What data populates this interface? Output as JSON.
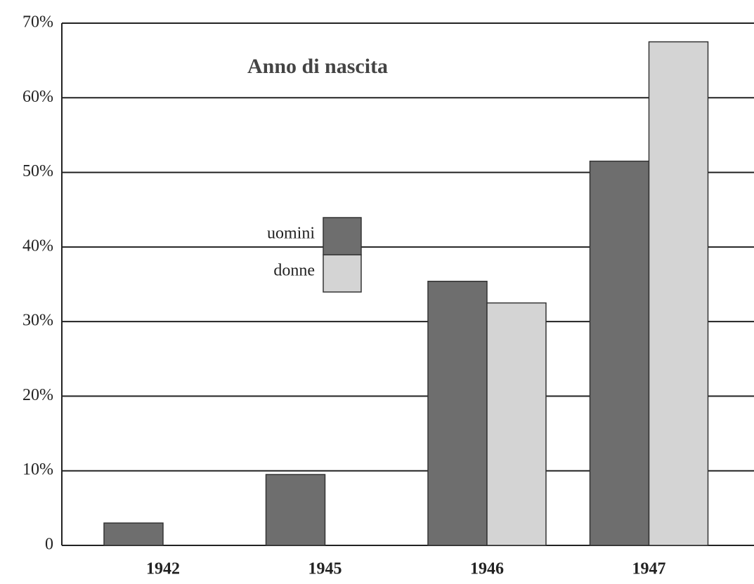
{
  "chart_data": {
    "type": "bar",
    "title": "Anno di nascita",
    "categories": [
      "1942",
      "1945",
      "1946",
      "1947"
    ],
    "series": [
      {
        "name": "uomini",
        "color": "#6e6e6e",
        "values": [
          3,
          9.5,
          35.4,
          51.5
        ]
      },
      {
        "name": "donne",
        "color": "#d4d4d4",
        "values": [
          0,
          0,
          32.5,
          67.5
        ]
      }
    ],
    "ylim": [
      0,
      70
    ],
    "yticks": [
      0,
      {
        "value": 10,
        "label": "10%"
      },
      {
        "value": 20,
        "label": "20%"
      },
      {
        "value": 30,
        "label": "30%"
      },
      {
        "value": 40,
        "label": "40%"
      },
      {
        "value": 50,
        "label": "50%"
      },
      {
        "value": 60,
        "label": "60%"
      },
      {
        "value": 70,
        "label": "70%"
      }
    ],
    "grid": true
  }
}
